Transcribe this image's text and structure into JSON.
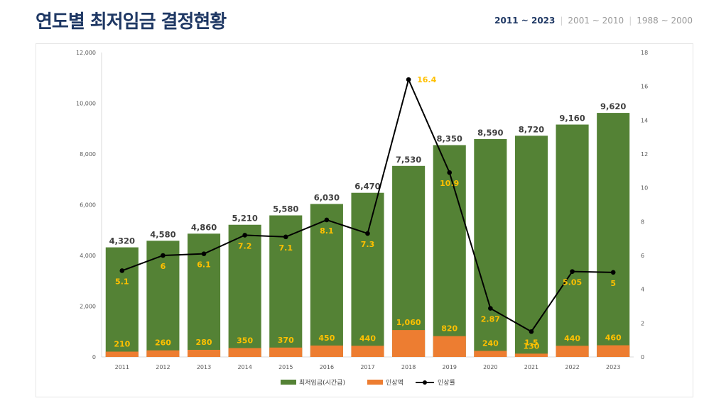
{
  "header": {
    "title": "연도별 최저임금 결정현황",
    "periods": [
      "2011 ~ 2023",
      "2001 ~ 2010",
      "1988 ~ 2000"
    ]
  },
  "chart_data": {
    "type": "bar",
    "title": "연도별 최저임금 결정현황",
    "categories": [
      "2011",
      "2012",
      "2013",
      "2014",
      "2015",
      "2016",
      "2017",
      "2018",
      "2019",
      "2020",
      "2021",
      "2022",
      "2023"
    ],
    "series": [
      {
        "name": "최저임금(시간급)",
        "type": "bar",
        "axis": "left",
        "color": "#548235",
        "values": [
          4320,
          4580,
          4860,
          5210,
          5580,
          6030,
          6470,
          7530,
          8350,
          8590,
          8720,
          9160,
          9620
        ],
        "labels": [
          "4,320",
          "4,580",
          "4,860",
          "5,210",
          "5,580",
          "6,030",
          "6,470",
          "7,530",
          "8,350",
          "8,590",
          "8,720",
          "9,160",
          "9,620"
        ]
      },
      {
        "name": "인상액",
        "type": "bar",
        "axis": "left",
        "color": "#ed7d31",
        "values": [
          210,
          260,
          280,
          350,
          370,
          450,
          440,
          1060,
          820,
          240,
          130,
          440,
          460
        ],
        "labels": [
          "210",
          "260",
          "280",
          "350",
          "370",
          "450",
          "440",
          "1,060",
          "820",
          "240",
          "130",
          "440",
          "460"
        ]
      },
      {
        "name": "인상률",
        "type": "line",
        "axis": "right",
        "color": "#000000",
        "values": [
          5.1,
          6,
          6.1,
          7.2,
          7.1,
          8.1,
          7.3,
          16.4,
          10.9,
          2.87,
          1.5,
          5.05,
          5
        ],
        "labels": [
          "5.1",
          "6",
          "6.1",
          "7.2",
          "7.1",
          "8.1",
          "7.3",
          "16.4",
          "10.9",
          "2.87",
          "1.5",
          "5.05",
          "5"
        ]
      }
    ],
    "y_left": {
      "min": 0,
      "max": 12000,
      "step": 2000,
      "tick_labels": [
        "0",
        "2,000",
        "4,000",
        "6,000",
        "8,000",
        "10,000",
        "12,000"
      ]
    },
    "y_right": {
      "min": 0,
      "max": 18,
      "step": 2,
      "tick_labels": [
        "0",
        "2",
        "4",
        "6",
        "8",
        "10",
        "12",
        "14",
        "16",
        "18"
      ]
    },
    "legend": {
      "position": "bottom",
      "items": [
        "최저임금(시간급)",
        "인상액",
        "인상률"
      ]
    }
  }
}
